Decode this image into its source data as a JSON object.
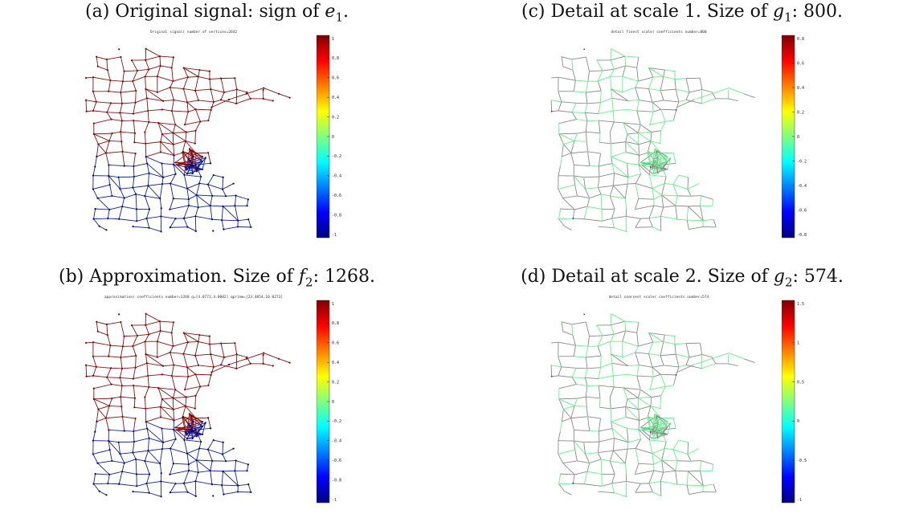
{
  "panels": {
    "a": {
      "label": "(a) Original signal: sign of ",
      "var": "e",
      "sub": "1",
      "tail": ".",
      "plot_title": "Original signal( number of vertices=2642",
      "colorbar_ticks": [
        "1",
        "0.8",
        "0.6",
        "0.4",
        "0.2",
        "0",
        "-0.2",
        "-0.4",
        "-0.6",
        "-0.8",
        "-1"
      ]
    },
    "b": {
      "label": "(b) Approximation. Size of ",
      "var": "f",
      "sub": "2",
      "tail": ": 1268.",
      "plot_title": "approximation( coefficients number=1268 q=[4.0773,4.0082] qprime=[23.4054,10.0273]",
      "colorbar_ticks": [
        "1",
        "0.8",
        "0.6",
        "0.4",
        "0.2",
        "0",
        "-0.2",
        "-0.4",
        "-0.6",
        "-0.8",
        "-1"
      ]
    },
    "c": {
      "label": "(c) Detail at scale 1. Size of ",
      "var": "g",
      "sub": "1",
      "tail": ": 800.",
      "plot_title": "detail finest scale( coefficients number=800",
      "colorbar_ticks": [
        "0.8",
        "0.6",
        "0.4",
        "0.2",
        "0",
        "-0.2",
        "-0.4",
        "-0.6",
        "-0.8"
      ]
    },
    "d": {
      "label": "(d) Detail at scale 2. Size of ",
      "var": "g",
      "sub": "2",
      "tail": ": 574.",
      "plot_title": "detail coarsest scale( coefficients number=574",
      "colorbar_ticks": [
        "1.5",
        "1",
        "0.5",
        "0",
        "-0.5",
        "-1"
      ]
    }
  },
  "colors": {
    "jet": [
      "#00007f",
      "#0000ff",
      "#007fff",
      "#00ffff",
      "#7fff7f",
      "#ffff00",
      "#ff7f00",
      "#ff0000",
      "#7f0000"
    ],
    "edge_gray": "#8a8a8a",
    "edge_green": "#66f08a"
  }
}
